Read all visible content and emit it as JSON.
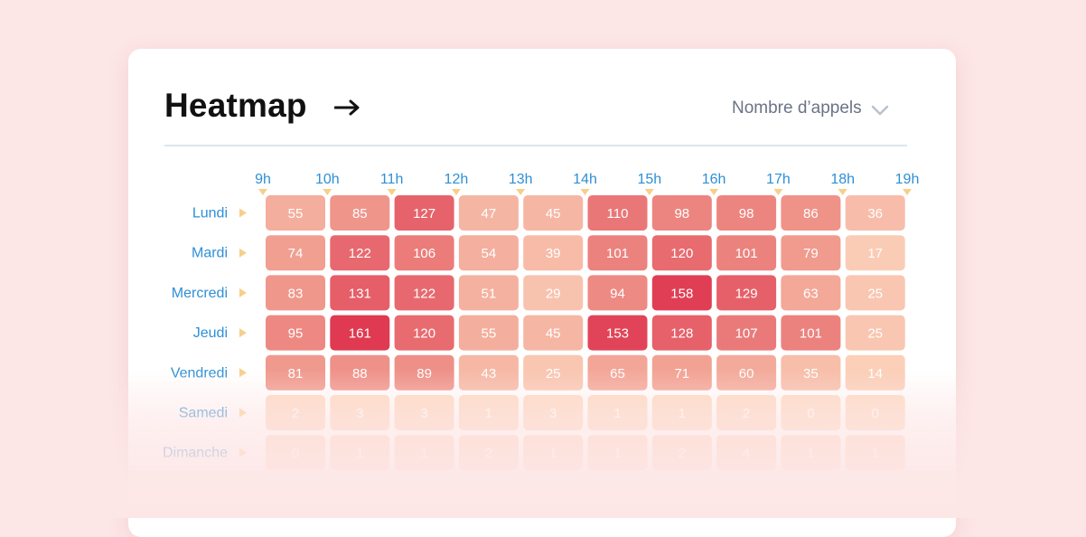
{
  "header": {
    "title": "Heatmap",
    "metric_label": "Nombre d’appels"
  },
  "chart_data": {
    "type": "heatmap",
    "title": "Heatmap",
    "metric": "Nombre d’appels",
    "x_ticks": [
      "9h",
      "10h",
      "11h",
      "12h",
      "13h",
      "14h",
      "15h",
      "16h",
      "17h",
      "18h",
      "19h"
    ],
    "y_labels": [
      "Lundi",
      "Mardi",
      "Mercredi",
      "Jeudi",
      "Vendredi",
      "Samedi",
      "Dimanche"
    ],
    "values": [
      [
        55,
        85,
        127,
        47,
        45,
        110,
        98,
        98,
        86,
        36
      ],
      [
        74,
        122,
        106,
        54,
        39,
        101,
        120,
        101,
        79,
        17
      ],
      [
        83,
        131,
        122,
        51,
        29,
        94,
        158,
        129,
        63,
        25
      ],
      [
        95,
        161,
        120,
        55,
        45,
        153,
        128,
        107,
        101,
        25
      ],
      [
        81,
        88,
        89,
        43,
        25,
        65,
        71,
        60,
        35,
        14
      ],
      [
        2,
        3,
        3,
        1,
        3,
        1,
        1,
        2,
        0,
        0
      ],
      [
        0,
        1,
        1,
        2,
        1,
        1,
        2,
        4,
        1,
        1
      ]
    ],
    "value_range": [
      0,
      161
    ],
    "colors": {
      "low": "#fddac1",
      "mid": "#f09a8d",
      "high": "#df3a52",
      "tick": "#2e8fd6",
      "marker": "#f7cf8a"
    }
  }
}
